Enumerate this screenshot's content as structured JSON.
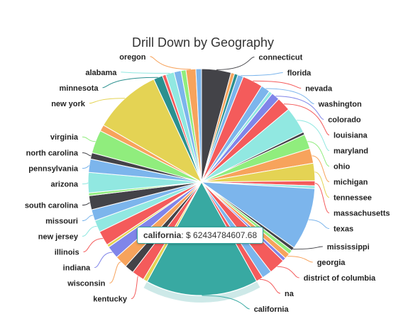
{
  "chart_data": {
    "type": "pie",
    "title": "Drill Down by Geography",
    "tooltip": {
      "series_name": "california",
      "value_text": "$ 62434784607.68"
    },
    "slices": [
      {
        "label": "connecticut",
        "value": 4.2,
        "color": "#434348"
      },
      {
        "label": "",
        "value": 0.5,
        "color": "#f7a35c"
      },
      {
        "label": "",
        "value": 0.5,
        "color": "#2b908f"
      },
      {
        "label": "florida",
        "value": 0.8,
        "color": "#7cb5ec"
      },
      {
        "label": "nevada",
        "value": 2.9,
        "color": "#f45b5b"
      },
      {
        "label": "washington",
        "value": 1.3,
        "color": "#7cb5ec"
      },
      {
        "label": "",
        "value": 0.5,
        "color": "#91e8e1"
      },
      {
        "label": "colorado",
        "value": 1.2,
        "color": "#8085e9"
      },
      {
        "label": "louisiana",
        "value": 2.0,
        "color": "#f45b5b"
      },
      {
        "label": "maryland",
        "value": 3.8,
        "color": "#91e8e1"
      },
      {
        "label": "",
        "value": 0.4,
        "color": "#434348"
      },
      {
        "label": "ohio",
        "value": 2.1,
        "color": "#90ed7d"
      },
      {
        "label": "michigan",
        "value": 2.1,
        "color": "#f7a35c"
      },
      {
        "label": "tennessee",
        "value": 2.5,
        "color": "#e4d354"
      },
      {
        "label": "massachusetts",
        "value": 0.7,
        "color": "#f45b5b"
      },
      {
        "label": "",
        "value": 0.4,
        "color": "#91e8e1"
      },
      {
        "label": "texas",
        "value": 8.9,
        "color": "#7cb5ec"
      },
      {
        "label": "mississippi",
        "value": 0.5,
        "color": "#434348"
      },
      {
        "label": "",
        "value": 0.6,
        "color": "#90ed7d"
      },
      {
        "label": "georgia",
        "value": 0.8,
        "color": "#f7a35c"
      },
      {
        "label": "",
        "value": 0.5,
        "color": "#8085e9"
      },
      {
        "label": "district of columbia",
        "value": 2.3,
        "color": "#f45b5b"
      },
      {
        "label": "",
        "value": 1.4,
        "color": "#7cb5ec"
      },
      {
        "label": "na",
        "value": 1.0,
        "color": "#f45b5b"
      },
      {
        "label": "california",
        "value": 16.0,
        "color": "#38a9a2"
      },
      {
        "label": "",
        "value": 0.6,
        "color": "#e4d354"
      },
      {
        "label": "kentucky",
        "value": 1.8,
        "color": "#f45b5b"
      },
      {
        "label": "",
        "value": 1.3,
        "color": "#434348"
      },
      {
        "label": "wisconsin",
        "value": 1.8,
        "color": "#f7a35c"
      },
      {
        "label": "indiana",
        "value": 1.8,
        "color": "#8085e9"
      },
      {
        "label": "",
        "value": 0.4,
        "color": "#e4d354"
      },
      {
        "label": "illinois",
        "value": 2.1,
        "color": "#f45b5b"
      },
      {
        "label": "new jersey",
        "value": 1.7,
        "color": "#91e8e1"
      },
      {
        "label": "missouri",
        "value": 1.6,
        "color": "#7cb5ec"
      },
      {
        "label": "south carolina",
        "value": 2.0,
        "color": "#434348"
      },
      {
        "label": "",
        "value": 0.4,
        "color": "#90ed7d"
      },
      {
        "label": "arizona",
        "value": 2.9,
        "color": "#91e8e1"
      },
      {
        "label": "pennsylvania",
        "value": 1.9,
        "color": "#7cb5ec"
      },
      {
        "label": "north carolina",
        "value": 0.9,
        "color": "#434348"
      },
      {
        "label": "virginia",
        "value": 3.3,
        "color": "#90ed7d"
      },
      {
        "label": "",
        "value": 0.9,
        "color": "#f7a35c"
      },
      {
        "label": "new york",
        "value": 9.7,
        "color": "#e4d354"
      },
      {
        "label": "minnesota",
        "value": 1.3,
        "color": "#2b908f"
      },
      {
        "label": "",
        "value": 0.5,
        "color": "#f45b5b"
      },
      {
        "label": "alabama",
        "value": 1.2,
        "color": "#91e8e1"
      },
      {
        "label": "",
        "value": 1.0,
        "color": "#7cb5ec"
      },
      {
        "label": "",
        "value": 0.7,
        "color": "#90ed7d"
      },
      {
        "label": "oregon",
        "value": 1.4,
        "color": "#f7a35c"
      },
      {
        "label": "",
        "value": 0.8,
        "color": "#7cb5ec"
      }
    ]
  }
}
